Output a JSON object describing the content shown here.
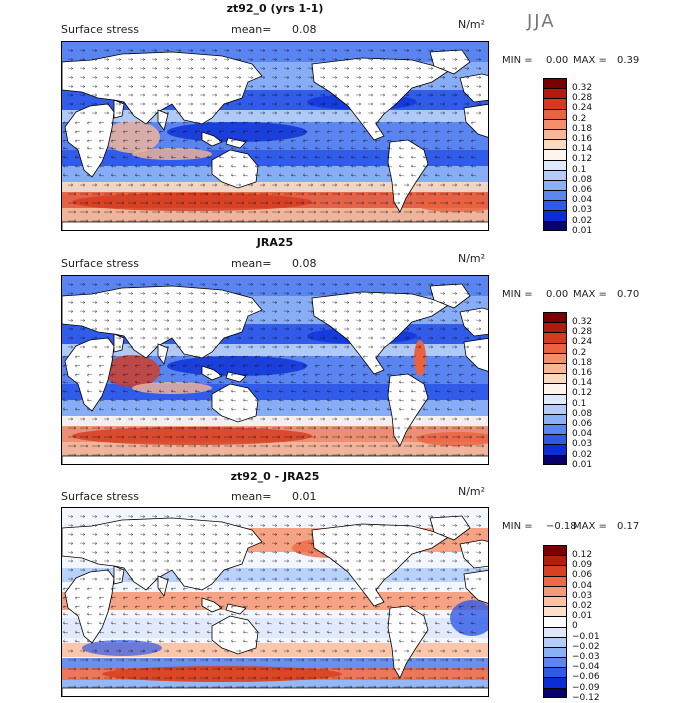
{
  "season": "JJA",
  "colors": {
    "pos_scale": [
      "#08006b",
      "#0b2dd6",
      "#2f5ae8",
      "#5b86f0",
      "#8ab0f5",
      "#b4cdf8",
      "#dfe9fc",
      "#fdf5ee",
      "#fbd9c1",
      "#f8b797",
      "#f48f6c",
      "#ea623f",
      "#d53a1e",
      "#b21b0c",
      "#7a0000"
    ],
    "diff_scale": [
      "#08006b",
      "#0b2dd6",
      "#2f5ae8",
      "#5b86f0",
      "#8ab0f5",
      "#b4cdf8",
      "#dfe9fc",
      "#ffffff",
      "#fde0cc",
      "#fbc2a3",
      "#f59a77",
      "#ec6a47",
      "#d8401f",
      "#b31d0b",
      "#7a0000"
    ],
    "land": "#ffffff",
    "coast": "#000000"
  },
  "panels": [
    {
      "title": "zt92_0 (yrs 1-1)",
      "label": "Surface stress",
      "mean_label": "mean=",
      "mean": "0.08",
      "units": "N/m²",
      "min_label": "MIN =",
      "min": "0.00",
      "max_label": "MAX =",
      "max": "0.39",
      "colorbar_ticks": [
        "0.32",
        "0.28",
        "0.24",
        "0.2",
        "0.18",
        "0.16",
        "0.14",
        "0.12",
        "0.1",
        "0.08",
        "0.06",
        "0.04",
        "0.03",
        "0.02",
        "0.01"
      ]
    },
    {
      "title": "JRA25",
      "label": "Surface stress",
      "mean_label": "mean=",
      "mean": "0.08",
      "units": "N/m²",
      "min_label": "MIN =",
      "min": "0.00",
      "max_label": "MAX =",
      "max": "0.70",
      "colorbar_ticks": [
        "0.32",
        "0.28",
        "0.24",
        "0.2",
        "0.18",
        "0.16",
        "0.14",
        "0.12",
        "0.1",
        "0.08",
        "0.06",
        "0.04",
        "0.03",
        "0.02",
        "0.01"
      ]
    },
    {
      "title": "zt92_0 - JRA25",
      "label": "Surface stress",
      "mean_label": "mean=",
      "mean": "0.01",
      "units": "N/m²",
      "min_label": "MIN =",
      "min": "−0.18",
      "max_label": "MAX =",
      "max": "0.17",
      "colorbar_ticks": [
        "0.12",
        "0.09",
        "0.06",
        "0.04",
        "0.03",
        "0.02",
        "0.01",
        "0",
        "−0.01",
        "−0.02",
        "−0.03",
        "−0.04",
        "−0.06",
        "−0.09",
        "−0.12"
      ]
    }
  ]
}
